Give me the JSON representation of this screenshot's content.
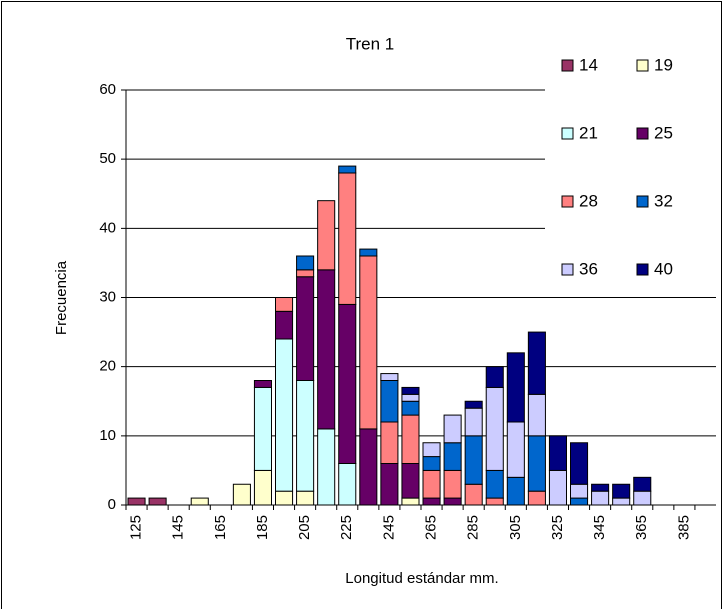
{
  "chart_data": {
    "type": "stacked_bar",
    "title": "Tren 1",
    "x_label": "Longitud estándar mm.",
    "y_label": "Frecuencia",
    "categories": [
      "125",
      null,
      "145",
      null,
      "165",
      null,
      "185",
      null,
      "205",
      null,
      "225",
      null,
      "245",
      null,
      "265",
      null,
      "285",
      null,
      "305",
      null,
      "325",
      null,
      "345",
      null,
      "365",
      null,
      "385",
      null
    ],
    "ylim": [
      0,
      60
    ],
    "yticks": [
      0,
      10,
      20,
      30,
      40,
      50,
      60
    ],
    "grid": true,
    "series": [
      {
        "name": "14",
        "color": "#993366",
        "values": [
          1,
          1,
          0,
          0,
          0,
          0,
          0,
          0,
          0,
          0,
          0,
          0,
          0,
          0,
          0,
          0,
          0,
          0,
          0,
          0,
          0,
          0,
          0,
          0,
          0,
          0,
          0,
          0
        ]
      },
      {
        "name": "19",
        "color": "#FFFFCC",
        "values": [
          0,
          0,
          0,
          1,
          0,
          3,
          5,
          2,
          2,
          0,
          0,
          0,
          0,
          1,
          0,
          0,
          0,
          0,
          0,
          0,
          0,
          0,
          0,
          0,
          0,
          0,
          0,
          0
        ]
      },
      {
        "name": "21",
        "color": "#CCFFFF",
        "values": [
          0,
          0,
          0,
          0,
          0,
          0,
          12,
          22,
          16,
          11,
          6,
          0,
          0,
          0,
          0,
          0,
          0,
          0,
          0,
          0,
          0,
          0,
          0,
          0,
          0,
          0,
          0,
          0
        ]
      },
      {
        "name": "25",
        "color": "#660066",
        "values": [
          0,
          0,
          0,
          0,
          0,
          0,
          1,
          4,
          15,
          23,
          23,
          11,
          6,
          5,
          1,
          1,
          0,
          0,
          0,
          0,
          0,
          0,
          0,
          0,
          0,
          0,
          0,
          0
        ]
      },
      {
        "name": "28",
        "color": "#FF8080",
        "values": [
          0,
          0,
          0,
          0,
          0,
          0,
          0,
          2,
          1,
          10,
          19,
          25,
          6,
          7,
          4,
          4,
          3,
          1,
          0,
          2,
          0,
          0,
          0,
          0,
          0,
          0,
          0,
          0
        ]
      },
      {
        "name": "32",
        "color": "#0066CC",
        "values": [
          0,
          0,
          0,
          0,
          0,
          0,
          0,
          0,
          2,
          0,
          1,
          1,
          6,
          2,
          2,
          4,
          7,
          4,
          4,
          8,
          0,
          1,
          0,
          0,
          0,
          0,
          0,
          0
        ]
      },
      {
        "name": "36",
        "color": "#CCCCFF",
        "values": [
          0,
          0,
          0,
          0,
          0,
          0,
          0,
          0,
          0,
          0,
          0,
          0,
          1,
          1,
          2,
          4,
          4,
          12,
          8,
          6,
          5,
          2,
          2,
          1,
          2,
          0,
          0,
          0
        ]
      },
      {
        "name": "40",
        "color": "#000080",
        "values": [
          0,
          0,
          0,
          0,
          0,
          0,
          0,
          0,
          0,
          0,
          0,
          0,
          0,
          1,
          0,
          0,
          1,
          3,
          10,
          9,
          5,
          6,
          1,
          2,
          2,
          0,
          0,
          0
        ]
      }
    ]
  }
}
